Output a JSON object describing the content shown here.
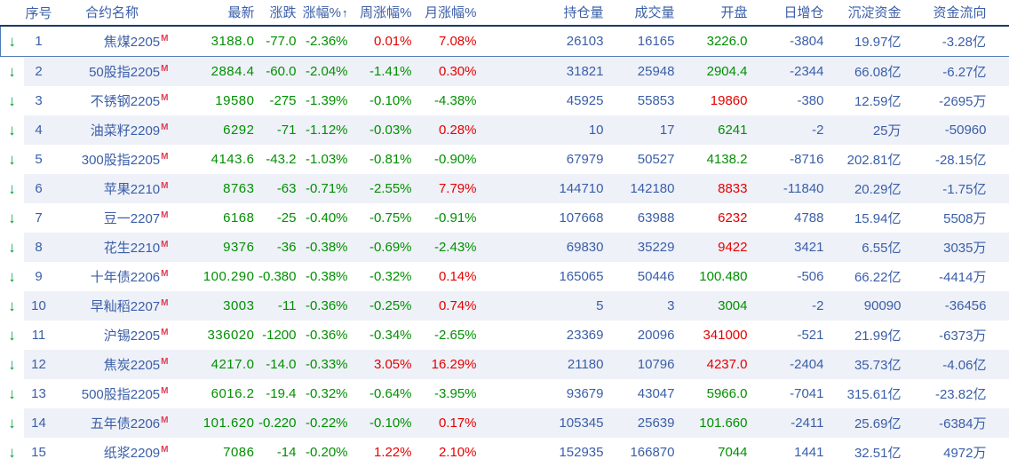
{
  "app": {
    "type": "futures-market-quote-table"
  },
  "colors": {
    "up_red": "#e60000",
    "down_green": "#009000",
    "neutral_blue": "#3a5ea8",
    "row_stripe": "#eef1f8",
    "header_underline": "#1a3a64",
    "selection_border": "#4f7ab8",
    "main_marker_red": "#e23a50",
    "arrow_green": "#00a040"
  },
  "icons": {
    "down_arrow": "↓",
    "sort_up_arrow": "↑"
  },
  "table": {
    "headers": {
      "seq": "序号",
      "name": "合约名称",
      "last": "最新",
      "chg": "涨跌",
      "pct": "涨幅%",
      "wk": "周涨幅%",
      "mo": "月涨幅%",
      "oi": "持仓量",
      "vol": "成交量",
      "open": "开盘",
      "dinc": "日增仓",
      "fund": "沉淀资金",
      "flow": "资金流向"
    },
    "main_contract_marker": "M",
    "rows": [
      {
        "seq": "1",
        "name": "焦煤2205",
        "last": {
          "v": "3188.0",
          "d": "down"
        },
        "chg": {
          "v": "-77.0",
          "d": "down"
        },
        "pct": {
          "v": "-2.36%",
          "d": "down"
        },
        "wk": {
          "v": "0.01%",
          "d": "up"
        },
        "mo": {
          "v": "7.08%",
          "d": "up"
        },
        "oi": "26103",
        "vol": "16165",
        "open": {
          "v": "3226.0",
          "d": "down"
        },
        "dinc": "-3804",
        "fund": "19.97亿",
        "flow": "-3.28亿",
        "selected": true
      },
      {
        "seq": "2",
        "name": "50股指2205",
        "last": {
          "v": "2884.4",
          "d": "down"
        },
        "chg": {
          "v": "-60.0",
          "d": "down"
        },
        "pct": {
          "v": "-2.04%",
          "d": "down"
        },
        "wk": {
          "v": "-1.41%",
          "d": "down"
        },
        "mo": {
          "v": "0.30%",
          "d": "up"
        },
        "oi": "31821",
        "vol": "25948",
        "open": {
          "v": "2904.4",
          "d": "down"
        },
        "dinc": "-2344",
        "fund": "66.08亿",
        "flow": "-6.27亿",
        "selected": false
      },
      {
        "seq": "3",
        "name": "不锈钢2205",
        "last": {
          "v": "19580",
          "d": "down"
        },
        "chg": {
          "v": "-275",
          "d": "down"
        },
        "pct": {
          "v": "-1.39%",
          "d": "down"
        },
        "wk": {
          "v": "-0.10%",
          "d": "down"
        },
        "mo": {
          "v": "-4.38%",
          "d": "down"
        },
        "oi": "45925",
        "vol": "55853",
        "open": {
          "v": "19860",
          "d": "up"
        },
        "dinc": "-380",
        "fund": "12.59亿",
        "flow": "-2695万",
        "selected": false
      },
      {
        "seq": "4",
        "name": "油菜籽2209",
        "last": {
          "v": "6292",
          "d": "down"
        },
        "chg": {
          "v": "-71",
          "d": "down"
        },
        "pct": {
          "v": "-1.12%",
          "d": "down"
        },
        "wk": {
          "v": "-0.03%",
          "d": "down"
        },
        "mo": {
          "v": "0.28%",
          "d": "up"
        },
        "oi": "10",
        "vol": "17",
        "open": {
          "v": "6241",
          "d": "down"
        },
        "dinc": "-2",
        "fund": "25万",
        "flow": "-50960",
        "selected": false
      },
      {
        "seq": "5",
        "name": "300股指2205",
        "last": {
          "v": "4143.6",
          "d": "down"
        },
        "chg": {
          "v": "-43.2",
          "d": "down"
        },
        "pct": {
          "v": "-1.03%",
          "d": "down"
        },
        "wk": {
          "v": "-0.81%",
          "d": "down"
        },
        "mo": {
          "v": "-0.90%",
          "d": "down"
        },
        "oi": "67979",
        "vol": "50527",
        "open": {
          "v": "4138.2",
          "d": "down"
        },
        "dinc": "-8716",
        "fund": "202.81亿",
        "flow": "-28.15亿",
        "selected": false
      },
      {
        "seq": "6",
        "name": "苹果2210",
        "last": {
          "v": "8763",
          "d": "down"
        },
        "chg": {
          "v": "-63",
          "d": "down"
        },
        "pct": {
          "v": "-0.71%",
          "d": "down"
        },
        "wk": {
          "v": "-2.55%",
          "d": "down"
        },
        "mo": {
          "v": "7.79%",
          "d": "up"
        },
        "oi": "144710",
        "vol": "142180",
        "open": {
          "v": "8833",
          "d": "up"
        },
        "dinc": "-11840",
        "fund": "20.29亿",
        "flow": "-1.75亿",
        "selected": false
      },
      {
        "seq": "7",
        "name": "豆一2207",
        "last": {
          "v": "6168",
          "d": "down"
        },
        "chg": {
          "v": "-25",
          "d": "down"
        },
        "pct": {
          "v": "-0.40%",
          "d": "down"
        },
        "wk": {
          "v": "-0.75%",
          "d": "down"
        },
        "mo": {
          "v": "-0.91%",
          "d": "down"
        },
        "oi": "107668",
        "vol": "63988",
        "open": {
          "v": "6232",
          "d": "up"
        },
        "dinc": "4788",
        "fund": "15.94亿",
        "flow": "5508万",
        "selected": false
      },
      {
        "seq": "8",
        "name": "花生2210",
        "last": {
          "v": "9376",
          "d": "down"
        },
        "chg": {
          "v": "-36",
          "d": "down"
        },
        "pct": {
          "v": "-0.38%",
          "d": "down"
        },
        "wk": {
          "v": "-0.69%",
          "d": "down"
        },
        "mo": {
          "v": "-2.43%",
          "d": "down"
        },
        "oi": "69830",
        "vol": "35229",
        "open": {
          "v": "9422",
          "d": "up"
        },
        "dinc": "3421",
        "fund": "6.55亿",
        "flow": "3035万",
        "selected": false
      },
      {
        "seq": "9",
        "name": "十年债2206",
        "last": {
          "v": "100.290",
          "d": "down"
        },
        "chg": {
          "v": "-0.380",
          "d": "down"
        },
        "pct": {
          "v": "-0.38%",
          "d": "down"
        },
        "wk": {
          "v": "-0.32%",
          "d": "down"
        },
        "mo": {
          "v": "0.14%",
          "d": "up"
        },
        "oi": "165065",
        "vol": "50446",
        "open": {
          "v": "100.480",
          "d": "down"
        },
        "dinc": "-506",
        "fund": "66.22亿",
        "flow": "-4414万",
        "selected": false
      },
      {
        "seq": "10",
        "name": "早籼稻2207",
        "last": {
          "v": "3003",
          "d": "down"
        },
        "chg": {
          "v": "-11",
          "d": "down"
        },
        "pct": {
          "v": "-0.36%",
          "d": "down"
        },
        "wk": {
          "v": "-0.25%",
          "d": "down"
        },
        "mo": {
          "v": "0.74%",
          "d": "up"
        },
        "oi": "5",
        "vol": "3",
        "open": {
          "v": "3004",
          "d": "down"
        },
        "dinc": "-2",
        "fund": "90090",
        "flow": "-36456",
        "selected": false
      },
      {
        "seq": "11",
        "name": "沪锡2205",
        "last": {
          "v": "336020",
          "d": "down"
        },
        "chg": {
          "v": "-1200",
          "d": "down"
        },
        "pct": {
          "v": "-0.36%",
          "d": "down"
        },
        "wk": {
          "v": "-0.34%",
          "d": "down"
        },
        "mo": {
          "v": "-2.65%",
          "d": "down"
        },
        "oi": "23369",
        "vol": "20096",
        "open": {
          "v": "341000",
          "d": "up"
        },
        "dinc": "-521",
        "fund": "21.99亿",
        "flow": "-6373万",
        "selected": false
      },
      {
        "seq": "12",
        "name": "焦炭2205",
        "last": {
          "v": "4217.0",
          "d": "down"
        },
        "chg": {
          "v": "-14.0",
          "d": "down"
        },
        "pct": {
          "v": "-0.33%",
          "d": "down"
        },
        "wk": {
          "v": "3.05%",
          "d": "up"
        },
        "mo": {
          "v": "16.29%",
          "d": "up"
        },
        "oi": "21180",
        "vol": "10796",
        "open": {
          "v": "4237.0",
          "d": "up"
        },
        "dinc": "-2404",
        "fund": "35.73亿",
        "flow": "-4.06亿",
        "selected": false
      },
      {
        "seq": "13",
        "name": "500股指2205",
        "last": {
          "v": "6016.2",
          "d": "down"
        },
        "chg": {
          "v": "-19.4",
          "d": "down"
        },
        "pct": {
          "v": "-0.32%",
          "d": "down"
        },
        "wk": {
          "v": "-0.64%",
          "d": "down"
        },
        "mo": {
          "v": "-3.95%",
          "d": "down"
        },
        "oi": "93679",
        "vol": "43047",
        "open": {
          "v": "5966.0",
          "d": "down"
        },
        "dinc": "-7041",
        "fund": "315.61亿",
        "flow": "-23.82亿",
        "selected": false
      },
      {
        "seq": "14",
        "name": "五年债2206",
        "last": {
          "v": "101.620",
          "d": "down"
        },
        "chg": {
          "v": "-0.220",
          "d": "down"
        },
        "pct": {
          "v": "-0.22%",
          "d": "down"
        },
        "wk": {
          "v": "-0.10%",
          "d": "down"
        },
        "mo": {
          "v": "0.17%",
          "d": "up"
        },
        "oi": "105345",
        "vol": "25639",
        "open": {
          "v": "101.660",
          "d": "down"
        },
        "dinc": "-2411",
        "fund": "25.69亿",
        "flow": "-6384万",
        "selected": false
      },
      {
        "seq": "15",
        "name": "纸浆2209",
        "last": {
          "v": "7086",
          "d": "down"
        },
        "chg": {
          "v": "-14",
          "d": "down"
        },
        "pct": {
          "v": "-0.20%",
          "d": "down"
        },
        "wk": {
          "v": "1.22%",
          "d": "up"
        },
        "mo": {
          "v": "2.10%",
          "d": "up"
        },
        "oi": "152935",
        "vol": "166870",
        "open": {
          "v": "7044",
          "d": "down"
        },
        "dinc": "1441",
        "fund": "32.51亿",
        "flow": "4972万",
        "selected": false
      }
    ]
  }
}
